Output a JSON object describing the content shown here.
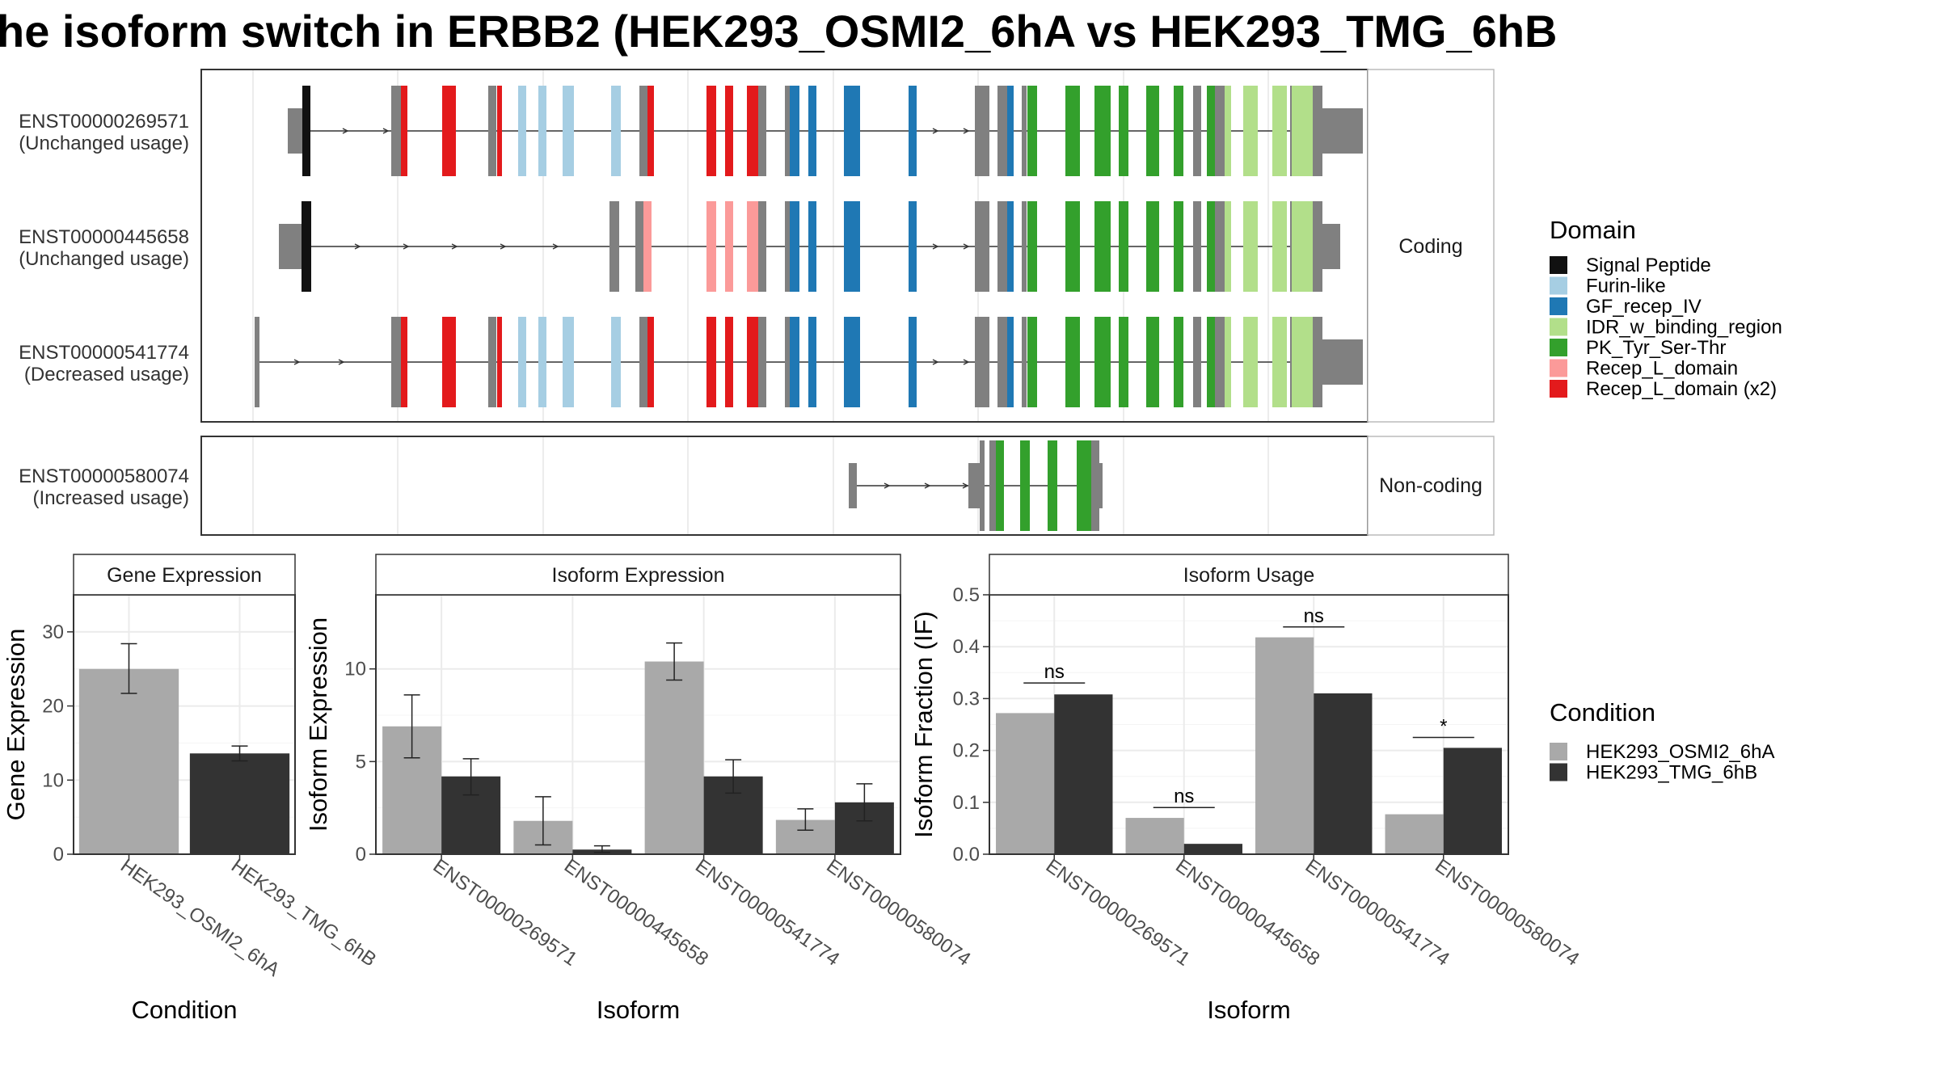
{
  "title": "he isoform switch in ERBB2 (HEK293_OSMI2_6hA vs HEK293_TMG_6hB",
  "facets": {
    "coding": "Coding",
    "noncoding": "Non-coding"
  },
  "transcripts": [
    {
      "id": "ENST00000269571",
      "usage": "(Unchanged usage)"
    },
    {
      "id": "ENST00000445658",
      "usage": "(Unchanged usage)"
    },
    {
      "id": "ENST00000541774",
      "usage": "(Decreased usage)"
    },
    {
      "id": "ENST00000580074",
      "usage": "(Increased usage)"
    }
  ],
  "domain_legend": {
    "title": "Domain",
    "items": [
      {
        "label": "Signal Peptide",
        "color": "#111111"
      },
      {
        "label": "Furin-like",
        "color": "#a6cee3"
      },
      {
        "label": "GF_recep_IV",
        "color": "#1f78b4"
      },
      {
        "label": "IDR_w_binding_region",
        "color": "#b2df8a"
      },
      {
        "label": "PK_Tyr_Ser-Thr",
        "color": "#33a02c"
      },
      {
        "label": "Recep_L_domain",
        "color": "#fb9a99"
      },
      {
        "label": "Recep_L_domain (x2)",
        "color": "#e31a1c"
      }
    ]
  },
  "condition_legend": {
    "title": "Condition",
    "items": [
      {
        "label": "HEK293_OSMI2_6hA",
        "color": "#a9a9a9"
      },
      {
        "label": "HEK293_TMG_6hB",
        "color": "#333333"
      }
    ]
  },
  "colors": {
    "noncoding_exon": "#808080",
    "intron": "#333333"
  },
  "chart_data": [
    {
      "type": "bar",
      "title": "Gene Expression",
      "xlabel": "Condition",
      "ylabel": "Gene Expression",
      "ylim": [
        0,
        35
      ],
      "yticks": [
        0,
        10,
        20,
        30
      ],
      "categories": [
        "HEK293_OSMI2_6hA",
        "HEK293_TMG_6hB"
      ],
      "values": [
        25.0,
        13.6
      ],
      "errors": [
        [
          21.7,
          28.4
        ],
        [
          12.6,
          14.6
        ]
      ]
    },
    {
      "type": "bar",
      "title": "Isoform Expression",
      "xlabel": "Isoform",
      "ylabel": "Isoform Expression",
      "ylim": [
        0,
        14
      ],
      "yticks": [
        0,
        5,
        10
      ],
      "categories": [
        "ENST00000269571",
        "ENST00000445658",
        "ENST00000541774",
        "ENST00000580074"
      ],
      "series": [
        {
          "name": "HEK293_OSMI2_6hA",
          "values": [
            6.9,
            1.8,
            10.4,
            1.85
          ],
          "errors": [
            [
              5.2,
              8.6
            ],
            [
              0.5,
              3.1
            ],
            [
              9.4,
              11.4
            ],
            [
              1.3,
              2.45
            ]
          ]
        },
        {
          "name": "HEK293_TMG_6hB",
          "values": [
            4.2,
            0.25,
            4.2,
            2.8
          ],
          "errors": [
            [
              3.2,
              5.15
            ],
            [
              0.1,
              0.45
            ],
            [
              3.3,
              5.1
            ],
            [
              1.8,
              3.8
            ]
          ]
        }
      ]
    },
    {
      "type": "bar",
      "title": "Isoform Usage",
      "xlabel": "Isoform",
      "ylabel": "Isoform Fraction (IF)",
      "ylim": [
        0,
        0.5
      ],
      "yticks": [
        0.0,
        0.1,
        0.2,
        0.3,
        0.4,
        0.5
      ],
      "categories": [
        "ENST00000269571",
        "ENST00000445658",
        "ENST00000541774",
        "ENST00000580074"
      ],
      "series": [
        {
          "name": "HEK293_OSMI2_6hA",
          "values": [
            0.272,
            0.07,
            0.418,
            0.077
          ]
        },
        {
          "name": "HEK293_TMG_6hB",
          "values": [
            0.308,
            0.02,
            0.31,
            0.205
          ]
        }
      ],
      "significance": [
        {
          "label": "ns",
          "y": 0.33
        },
        {
          "label": "ns",
          "y": 0.09
        },
        {
          "label": "ns",
          "y": 0.438
        },
        {
          "label": "*",
          "y": 0.225
        }
      ]
    }
  ]
}
